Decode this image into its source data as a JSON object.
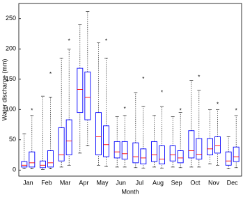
{
  "chart_data": {
    "type": "box",
    "x_label": "Month",
    "y_label": "Water discharge (mm)",
    "categories": [
      "Jan",
      "Feb",
      "Mar",
      "Apr",
      "May",
      "Jun",
      "Jul",
      "Aug",
      "Sep",
      "Oct",
      "Nov",
      "Dec"
    ],
    "ylim": [
      -10,
      275
    ],
    "yticks": [
      0,
      50,
      100,
      150,
      200,
      250
    ],
    "box_color": "#0000ff",
    "median_color": "#ff0000",
    "whisker_color": "#000000",
    "series": [
      {
        "low": [
          2,
          1,
          5,
          28,
          8,
          5,
          4,
          5,
          5,
          5,
          10,
          2
        ],
        "q1": [
          5,
          4,
          15,
          95,
          25,
          20,
          12,
          14,
          15,
          20,
          25,
          8
        ],
        "median": [
          8,
          8,
          25,
          133,
          55,
          30,
          22,
          25,
          25,
          32,
          35,
          15
        ],
        "q3": [
          14,
          15,
          70,
          168,
          95,
          47,
          45,
          47,
          40,
          65,
          52,
          30
        ],
        "high": [
          60,
          122,
          185,
          240,
          210,
          88,
          128,
          90,
          88,
          148,
          100,
          55
        ],
        "outliers": [
          null,
          null,
          null,
          null,
          null,
          null,
          null,
          null,
          null,
          null,
          null,
          null
        ]
      },
      {
        "low": [
          2,
          2,
          8,
          40,
          6,
          5,
          3,
          3,
          4,
          5,
          8,
          4
        ],
        "q1": [
          5,
          5,
          25,
          83,
          22,
          18,
          10,
          10,
          12,
          18,
          28,
          14
        ],
        "median": [
          12,
          12,
          48,
          120,
          42,
          27,
          20,
          18,
          20,
          26,
          40,
          22
        ],
        "q3": [
          30,
          32,
          83,
          162,
          73,
          47,
          35,
          40,
          32,
          52,
          55,
          38
        ],
        "high": [
          90,
          120,
          200,
          262,
          185,
          90,
          105,
          105,
          95,
          132,
          100,
          90
        ],
        "outliers": [
          100,
          160,
          215,
          null,
          215,
          103,
          152,
          130,
          100,
          155,
          110,
          100
        ]
      }
    ]
  }
}
